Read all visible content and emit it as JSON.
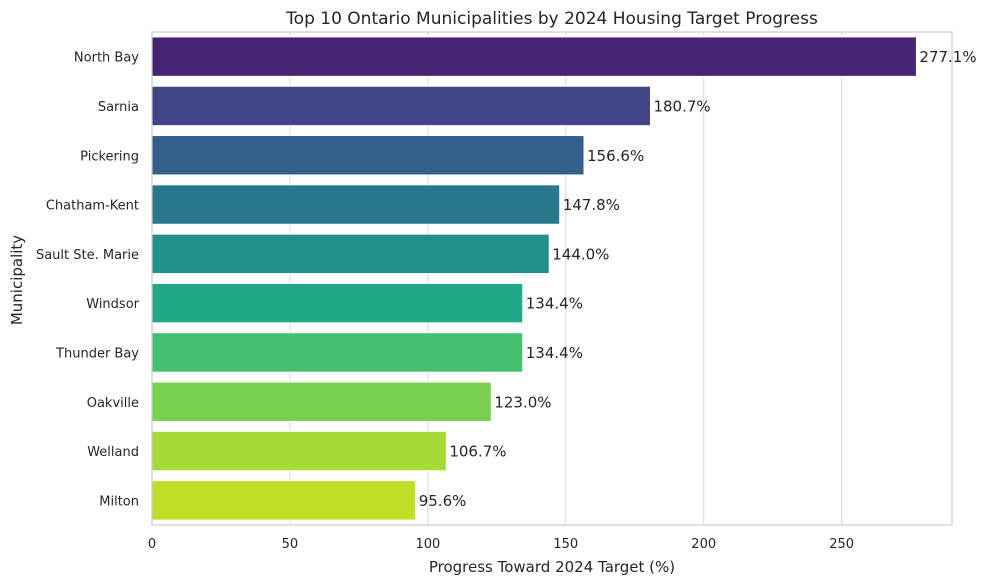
{
  "chart_data": {
    "type": "bar",
    "orientation": "horizontal",
    "title": "Top 10 Ontario Municipalities by 2024 Housing Target Progress",
    "xlabel": "Progress Toward 2024 Target (%)",
    "ylabel": "Municipality",
    "xlim": [
      0,
      290
    ],
    "xticks": [
      0,
      50,
      100,
      150,
      200,
      250
    ],
    "grid": true,
    "categories": [
      "North Bay",
      "Sarnia",
      "Pickering",
      "Chatham-Kent",
      "Sault Ste. Marie",
      "Windsor",
      "Thunder Bay",
      "Oakville",
      "Welland",
      "Milton"
    ],
    "values": [
      277.1,
      180.7,
      156.6,
      147.8,
      144.0,
      134.4,
      134.4,
      123.0,
      106.7,
      95.6
    ],
    "value_labels": [
      "277.1%",
      "180.7%",
      "156.6%",
      "147.8%",
      "144.0%",
      "134.4%",
      "134.4%",
      "123.0%",
      "106.7%",
      "95.6%"
    ],
    "colors": [
      "#482475",
      "#414487",
      "#355f8d",
      "#2a788e",
      "#21918c",
      "#22a884",
      "#44bf70",
      "#7ad151",
      "#a5db36",
      "#bddf26"
    ]
  }
}
